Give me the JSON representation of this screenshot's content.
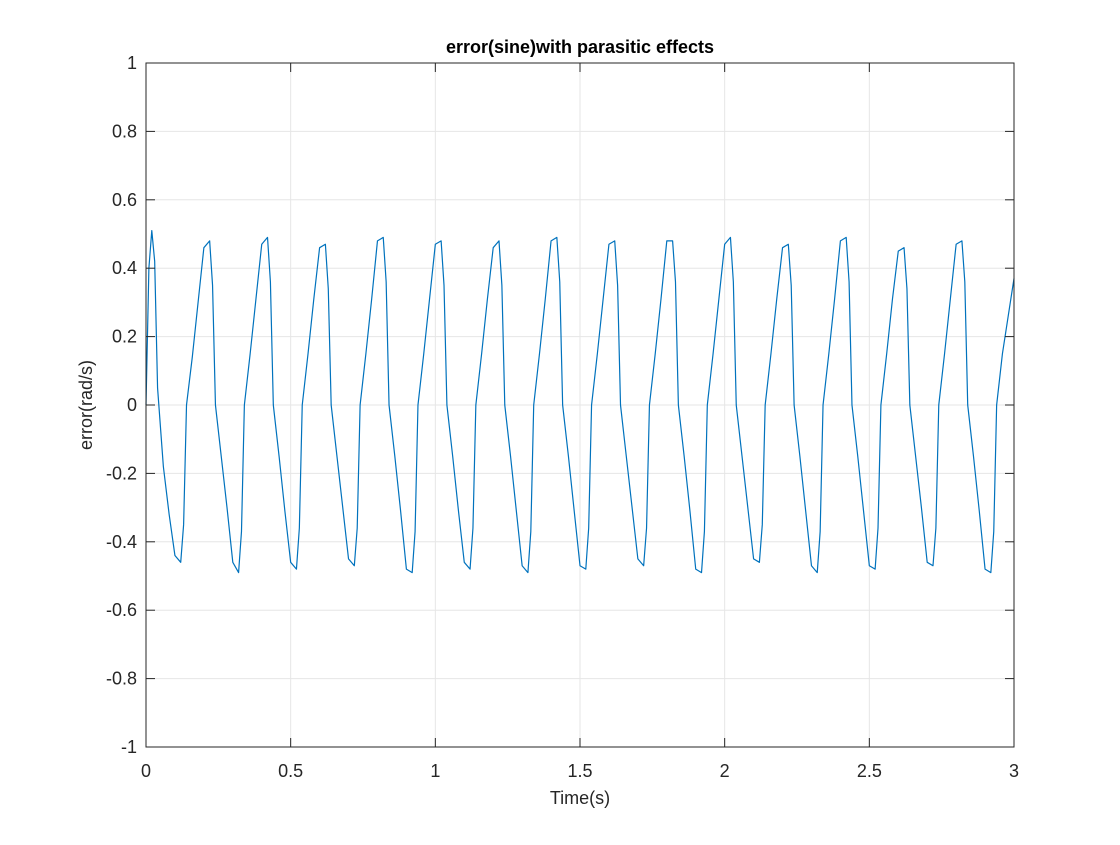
{
  "chart_data": {
    "type": "line",
    "title": "error(sine)with parasitic effects",
    "xlabel": "Time(s)",
    "ylabel": "error(rad/s)",
    "xlim": [
      0,
      3
    ],
    "ylim": [
      -1,
      1
    ],
    "grid": true,
    "x_ticks": [
      "0",
      "0.5",
      "1",
      "1.5",
      "2",
      "2.5",
      "3"
    ],
    "y_ticks": [
      "1",
      "0.8",
      "0.6",
      "0.4",
      "0.2",
      "0",
      "-0.2",
      "-0.4",
      "-0.6",
      "-0.8",
      "-1"
    ],
    "colors": {
      "series": "#0072BD",
      "grid": "#e6e6e6",
      "axis": "#262626"
    },
    "series": [
      {
        "x": [
          0.0,
          0.01,
          0.02,
          0.03,
          0.04,
          0.06,
          0.08,
          0.1,
          0.12,
          0.13,
          0.14,
          0.16,
          0.18,
          0.2,
          0.22,
          0.23,
          0.24,
          0.26,
          0.28,
          0.3,
          0.32,
          0.33,
          0.34,
          0.36,
          0.38,
          0.4,
          0.42,
          0.43,
          0.44,
          0.46,
          0.48,
          0.5,
          0.52,
          0.53,
          0.54,
          0.56,
          0.58,
          0.6,
          0.62,
          0.63,
          0.64,
          0.66,
          0.68,
          0.7,
          0.72,
          0.73,
          0.74,
          0.76,
          0.78,
          0.8,
          0.82,
          0.83,
          0.84,
          0.86,
          0.88,
          0.9,
          0.92,
          0.93,
          0.94,
          0.96,
          0.98,
          1.0,
          1.02,
          1.03,
          1.04,
          1.06,
          1.08,
          1.1,
          1.12,
          1.13,
          1.14,
          1.16,
          1.18,
          1.2,
          1.22,
          1.23,
          1.24,
          1.26,
          1.28,
          1.3,
          1.32,
          1.33,
          1.34,
          1.36,
          1.38,
          1.4,
          1.42,
          1.43,
          1.44,
          1.46,
          1.48,
          1.5,
          1.52,
          1.53,
          1.54,
          1.56,
          1.58,
          1.6,
          1.62,
          1.63,
          1.64,
          1.66,
          1.68,
          1.7,
          1.72,
          1.73,
          1.74,
          1.76,
          1.78,
          1.8,
          1.82,
          1.83,
          1.84,
          1.86,
          1.88,
          1.9,
          1.92,
          1.93,
          1.94,
          1.96,
          1.98,
          2.0,
          2.02,
          2.03,
          2.04,
          2.06,
          2.08,
          2.1,
          2.12,
          2.13,
          2.14,
          2.16,
          2.18,
          2.2,
          2.22,
          2.23,
          2.24,
          2.26,
          2.28,
          2.3,
          2.32,
          2.33,
          2.34,
          2.36,
          2.38,
          2.4,
          2.42,
          2.43,
          2.44,
          2.46,
          2.48,
          2.5,
          2.52,
          2.53,
          2.54,
          2.56,
          2.58,
          2.6,
          2.62,
          2.63,
          2.64,
          2.66,
          2.68,
          2.7,
          2.72,
          2.73,
          2.74,
          2.76,
          2.78,
          2.8,
          2.82,
          2.83,
          2.84,
          2.86,
          2.88,
          2.9,
          2.92,
          2.93,
          2.94,
          2.96,
          2.98,
          3.0
        ],
        "y": [
          0.0,
          0.4,
          0.51,
          0.42,
          0.05,
          -0.18,
          -0.32,
          -0.44,
          -0.46,
          -0.35,
          0.0,
          0.14,
          0.3,
          0.46,
          0.48,
          0.35,
          0.0,
          -0.15,
          -0.3,
          -0.46,
          -0.49,
          -0.37,
          0.0,
          0.15,
          0.31,
          0.47,
          0.49,
          0.36,
          0.0,
          -0.15,
          -0.31,
          -0.46,
          -0.48,
          -0.36,
          0.0,
          0.15,
          0.31,
          0.46,
          0.47,
          0.34,
          0.0,
          -0.15,
          -0.3,
          -0.45,
          -0.47,
          -0.36,
          0.0,
          0.15,
          0.31,
          0.48,
          0.49,
          0.36,
          0.0,
          -0.15,
          -0.31,
          -0.48,
          -0.49,
          -0.37,
          0.0,
          0.15,
          0.31,
          0.47,
          0.48,
          0.35,
          0.0,
          -0.15,
          -0.31,
          -0.46,
          -0.48,
          -0.36,
          0.0,
          0.15,
          0.31,
          0.46,
          0.48,
          0.35,
          0.0,
          -0.15,
          -0.31,
          -0.47,
          -0.49,
          -0.37,
          0.0,
          0.15,
          0.31,
          0.48,
          0.49,
          0.36,
          0.0,
          -0.15,
          -0.31,
          -0.47,
          -0.48,
          -0.36,
          0.0,
          0.15,
          0.31,
          0.47,
          0.48,
          0.35,
          0.0,
          -0.15,
          -0.3,
          -0.45,
          -0.47,
          -0.36,
          0.0,
          0.15,
          0.31,
          0.48,
          0.48,
          0.36,
          0.0,
          -0.15,
          -0.31,
          -0.48,
          -0.49,
          -0.37,
          0.0,
          0.15,
          0.31,
          0.47,
          0.49,
          0.36,
          0.0,
          -0.15,
          -0.3,
          -0.45,
          -0.46,
          -0.35,
          0.0,
          0.15,
          0.31,
          0.46,
          0.47,
          0.35,
          0.0,
          -0.15,
          -0.31,
          -0.47,
          -0.49,
          -0.37,
          0.0,
          0.15,
          0.31,
          0.48,
          0.49,
          0.36,
          0.0,
          -0.15,
          -0.31,
          -0.47,
          -0.48,
          -0.36,
          0.0,
          0.15,
          0.31,
          0.45,
          0.46,
          0.34,
          0.0,
          -0.15,
          -0.3,
          -0.46,
          -0.47,
          -0.36,
          0.0,
          0.15,
          0.31,
          0.47,
          0.48,
          0.36,
          0.0,
          -0.15,
          -0.31,
          -0.48,
          -0.49,
          -0.37,
          0.0,
          0.15,
          0.26,
          0.37
        ]
      }
    ]
  }
}
